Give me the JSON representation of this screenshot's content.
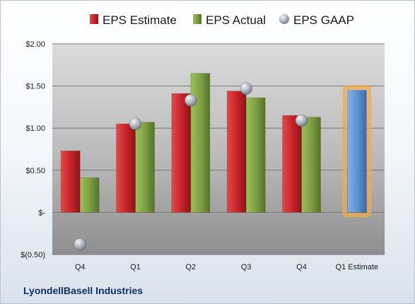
{
  "chart_data": {
    "type": "bar",
    "title": "",
    "company": "LyondellBasell Industries",
    "categories": [
      "Q4",
      "Q1",
      "Q2",
      "Q3",
      "Q4",
      "Q1 Estimate"
    ],
    "series": [
      {
        "name": "EPS Estimate",
        "type": "bar",
        "color": "#c8252a",
        "values": [
          0.73,
          1.05,
          1.41,
          1.44,
          1.15,
          null
        ]
      },
      {
        "name": "EPS Actual",
        "type": "bar",
        "color": "#7fa043",
        "values": [
          0.41,
          1.07,
          1.65,
          1.36,
          1.13,
          null
        ]
      },
      {
        "name": "EPS GAAP",
        "type": "marker",
        "color": "#a8aeb6",
        "values": [
          -0.38,
          1.05,
          1.33,
          1.47,
          1.09,
          null
        ]
      }
    ],
    "forecast": {
      "category": "Q1 Estimate",
      "value": 1.45,
      "color": "#5f93cf",
      "glow": "#f3a84a"
    },
    "y_ticks": [
      {
        "value": 2.0,
        "label": "$2.00"
      },
      {
        "value": 1.5,
        "label": "$1.50"
      },
      {
        "value": 1.0,
        "label": "$1.00"
      },
      {
        "value": 0.5,
        "label": "$0.50"
      },
      {
        "value": 0.0,
        "label": "$-"
      },
      {
        "value": -0.5,
        "label": "$(0.50)"
      }
    ],
    "ylim": [
      -0.5,
      2.0
    ],
    "grid": true,
    "legend": "top"
  }
}
